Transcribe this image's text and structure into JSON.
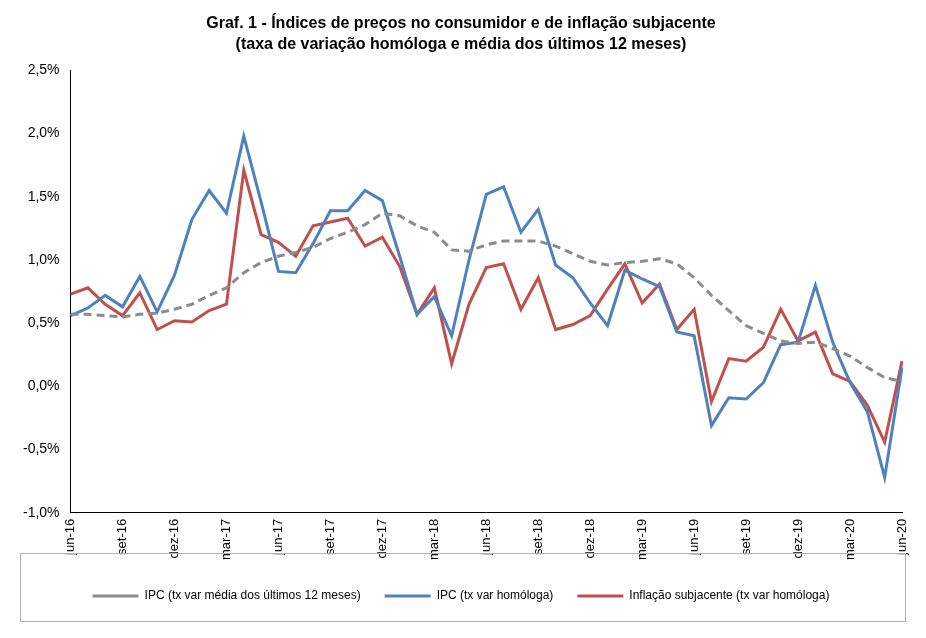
{
  "chart_data": {
    "type": "line",
    "title": "Graf. 1 - Índices de preços no consumidor e de inflação subjacente",
    "subtitle": "(taxa de variação homóloga e média dos últimos 12 meses)",
    "categories": [
      "jun-16",
      null,
      null,
      "set-16",
      null,
      null,
      "dez-16",
      null,
      null,
      "mar-17",
      null,
      null,
      "jun-17",
      null,
      null,
      "set-17",
      null,
      null,
      "dez-17",
      null,
      null,
      "mar-18",
      null,
      null,
      "jun-18",
      null,
      null,
      "set-18",
      null,
      null,
      "dez-18",
      null,
      null,
      "mar-19",
      null,
      null,
      "jun-19",
      null,
      null,
      "set-19",
      null,
      null,
      "dez-19",
      null,
      null,
      "mar-20",
      null,
      null,
      "jun-20"
    ],
    "series": [
      {
        "name": "IPC (tx var média dos últimos 12 meses)",
        "color": "#8c8c8c",
        "line_style": "dashed",
        "marker": "none",
        "values": [
          0.57,
          0.57,
          0.56,
          0.55,
          0.57,
          0.58,
          0.61,
          0.65,
          0.72,
          0.78,
          0.9,
          0.98,
          1.03,
          1.06,
          1.1,
          1.17,
          1.22,
          1.28,
          1.37,
          1.35,
          1.27,
          1.22,
          1.08,
          1.07,
          1.12,
          1.15,
          1.15,
          1.15,
          1.11,
          1.05,
          0.99,
          0.96,
          0.98,
          0.99,
          1.01,
          0.97,
          0.86,
          0.72,
          0.6,
          0.48,
          0.42,
          0.36,
          0.34,
          0.35,
          0.3,
          0.24,
          0.15,
          0.07,
          0.04
        ]
      },
      {
        "name": "IPC (tx var homóloga)",
        "color": "#4f81bd",
        "line_style": "solid",
        "marker": "none",
        "values": [
          0.56,
          0.62,
          0.72,
          0.63,
          0.87,
          0.59,
          0.88,
          1.32,
          1.55,
          1.37,
          1.98,
          1.46,
          0.91,
          0.9,
          1.13,
          1.39,
          1.39,
          1.55,
          1.47,
          1.03,
          0.57,
          0.71,
          0.4,
          1.0,
          1.52,
          1.58,
          1.22,
          1.4,
          0.96,
          0.86,
          0.66,
          0.48,
          0.92,
          0.85,
          0.79,
          0.43,
          0.4,
          -0.31,
          -0.09,
          -0.1,
          0.03,
          0.33,
          0.35,
          0.8,
          0.35,
          0.03,
          -0.2,
          -0.72,
          0.15
        ]
      },
      {
        "name": "Inflação subjacente (tx var homóloga)",
        "color": "#c0504d",
        "line_style": "solid",
        "marker": "none",
        "values": [
          0.73,
          0.78,
          0.65,
          0.56,
          0.74,
          0.45,
          0.52,
          0.51,
          0.6,
          0.65,
          1.71,
          1.2,
          1.14,
          1.03,
          1.27,
          1.3,
          1.33,
          1.11,
          1.18,
          0.95,
          0.57,
          0.78,
          0.18,
          0.65,
          0.94,
          0.97,
          0.61,
          0.86,
          0.45,
          0.49,
          0.56,
          0.77,
          0.97,
          0.66,
          0.81,
          0.45,
          0.61,
          -0.12,
          0.22,
          0.2,
          0.31,
          0.61,
          0.36,
          0.43,
          0.1,
          0.04,
          -0.15,
          -0.44,
          0.2
        ]
      }
    ],
    "ylim": [
      -1.0,
      2.5
    ],
    "yticks": [
      {
        "value": -1.0,
        "label": "-1,0%"
      },
      {
        "value": -0.5,
        "label": "-0,5%"
      },
      {
        "value": 0.0,
        "label": "0,0%"
      },
      {
        "value": 0.5,
        "label": "0,5%"
      },
      {
        "value": 1.0,
        "label": "1,0%"
      },
      {
        "value": 1.5,
        "label": "1,5%"
      },
      {
        "value": 2.0,
        "label": "2,0%"
      },
      {
        "value": 2.5,
        "label": "2,5%"
      }
    ],
    "grid": false,
    "legend": "bottom"
  }
}
